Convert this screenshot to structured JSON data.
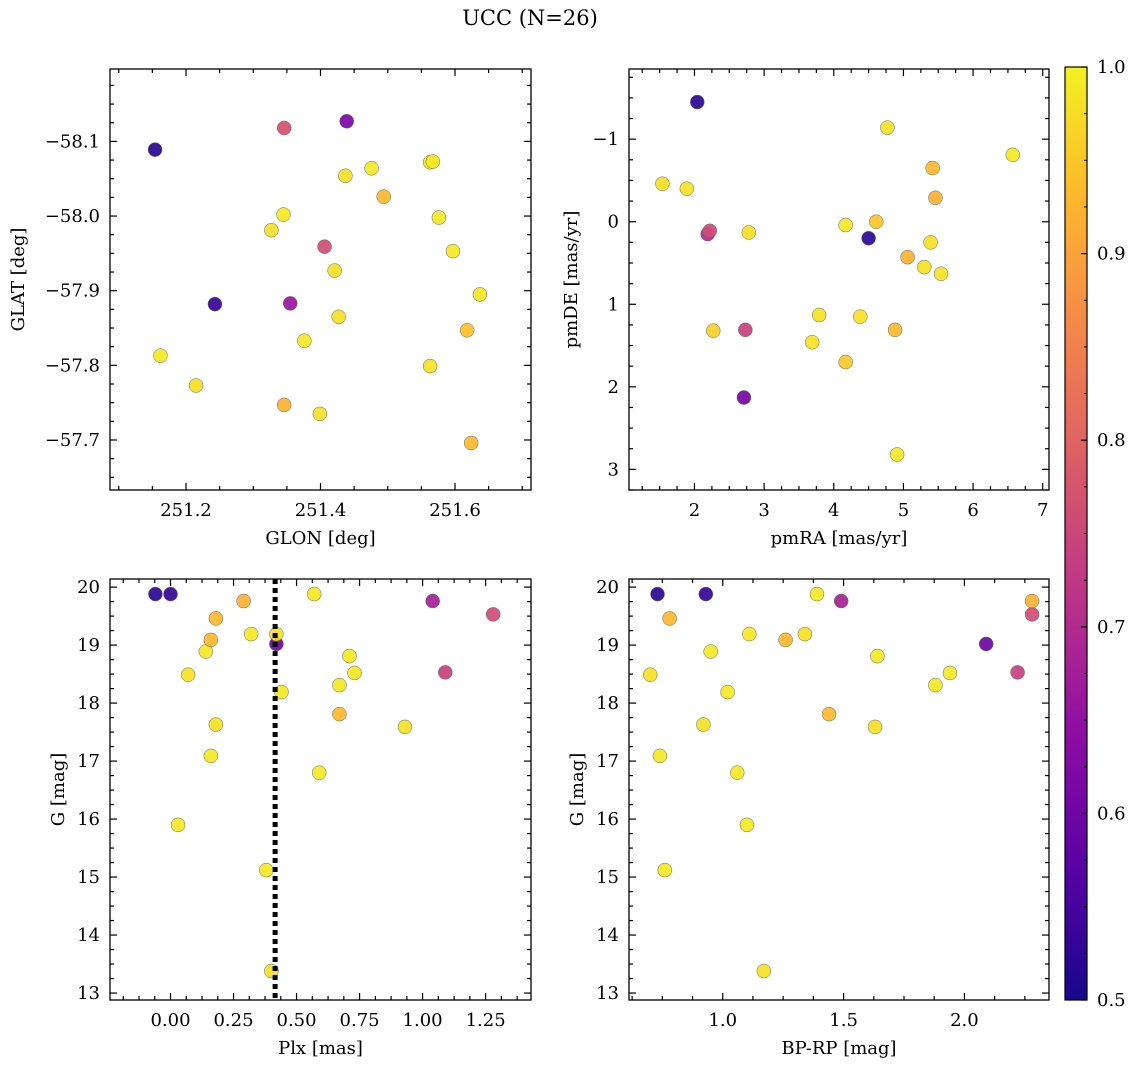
{
  "title": "UCC (N=26)",
  "colorbar": {
    "range": [
      0.5,
      1.0
    ],
    "ticks": [
      "0.5",
      "0.6",
      "0.7",
      "0.8",
      "0.9",
      "1.0"
    ],
    "colormap": "plasma"
  },
  "chart_data": [
    {
      "type": "scatter",
      "xlabel": "GLON [deg]",
      "ylabel": "GLAT [deg]",
      "xlim": [
        251.087,
        251.713
      ],
      "ylim": [
        -58.197,
        -57.633
      ],
      "xticks": [
        "251.2",
        "251.4",
        "251.6"
      ],
      "yticks": [
        "−57.7",
        "−57.8",
        "−57.9",
        "−58.0",
        "−58.1"
      ],
      "points": [
        {
          "x": 251.624,
          "y": -57.696,
          "c": 0.93
        },
        {
          "x": 251.346,
          "y": -57.747,
          "c": 0.92
        },
        {
          "x": 251.399,
          "y": -57.735,
          "c": 0.98
        },
        {
          "x": 251.215,
          "y": -57.773,
          "c": 0.98
        },
        {
          "x": 251.162,
          "y": -57.813,
          "c": 0.99
        },
        {
          "x": 251.563,
          "y": -57.799,
          "c": 0.98
        },
        {
          "x": 251.376,
          "y": -57.833,
          "c": 0.99
        },
        {
          "x": 251.618,
          "y": -57.847,
          "c": 0.94
        },
        {
          "x": 251.427,
          "y": -57.865,
          "c": 0.98
        },
        {
          "x": 251.243,
          "y": -57.882,
          "c": 0.53
        },
        {
          "x": 251.355,
          "y": -57.883,
          "c": 0.66
        },
        {
          "x": 251.637,
          "y": -57.895,
          "c": 0.99
        },
        {
          "x": 251.421,
          "y": -57.927,
          "c": 0.98
        },
        {
          "x": 251.597,
          "y": -57.953,
          "c": 0.99
        },
        {
          "x": 251.406,
          "y": -57.959,
          "c": 0.76
        },
        {
          "x": 251.327,
          "y": -57.981,
          "c": 0.98
        },
        {
          "x": 251.576,
          "y": -57.998,
          "c": 0.99
        },
        {
          "x": 251.345,
          "y": -58.002,
          "c": 0.99
        },
        {
          "x": 251.494,
          "y": -58.026,
          "c": 0.93
        },
        {
          "x": 251.437,
          "y": -58.054,
          "c": 0.98
        },
        {
          "x": 251.476,
          "y": -58.064,
          "c": 0.99
        },
        {
          "x": 251.563,
          "y": -58.072,
          "c": 0.99
        },
        {
          "x": 251.567,
          "y": -58.073,
          "c": 0.99
        },
        {
          "x": 251.154,
          "y": -58.089,
          "c": 0.52
        },
        {
          "x": 251.346,
          "y": -58.118,
          "c": 0.77
        },
        {
          "x": 251.439,
          "y": -58.127,
          "c": 0.62
        }
      ]
    },
    {
      "type": "scatter",
      "xlabel": "pmRA [mas/yr]",
      "ylabel": "pmDE [mas/yr]",
      "xlim": [
        1.06,
        7.09
      ],
      "ylim": [
        -1.85,
        3.25
      ],
      "xticks": [
        "2",
        "3",
        "4",
        "5",
        "6",
        "7"
      ],
      "yticks": [
        "−1",
        "0",
        "1",
        "2",
        "3"
      ],
      "points": [
        {
          "x": 4.91,
          "y": 2.82,
          "c": 0.99
        },
        {
          "x": 2.71,
          "y": 2.13,
          "c": 0.61
        },
        {
          "x": 4.17,
          "y": 1.7,
          "c": 0.95
        },
        {
          "x": 3.69,
          "y": 1.46,
          "c": 0.98
        },
        {
          "x": 2.27,
          "y": 1.32,
          "c": 0.96
        },
        {
          "x": 2.73,
          "y": 1.31,
          "c": 0.74
        },
        {
          "x": 4.88,
          "y": 1.31,
          "c": 0.93
        },
        {
          "x": 3.79,
          "y": 1.13,
          "c": 0.98
        },
        {
          "x": 4.38,
          "y": 1.15,
          "c": 0.98
        },
        {
          "x": 5.54,
          "y": 0.63,
          "c": 0.98
        },
        {
          "x": 5.3,
          "y": 0.55,
          "c": 0.98
        },
        {
          "x": 5.06,
          "y": 0.43,
          "c": 0.92
        },
        {
          "x": 5.39,
          "y": 0.25,
          "c": 0.98
        },
        {
          "x": 4.5,
          "y": 0.2,
          "c": 0.52
        },
        {
          "x": 2.19,
          "y": 0.15,
          "c": 0.7
        },
        {
          "x": 2.22,
          "y": 0.11,
          "c": 0.76
        },
        {
          "x": 2.78,
          "y": 0.13,
          "c": 0.98
        },
        {
          "x": 4.17,
          "y": 0.04,
          "c": 0.99
        },
        {
          "x": 4.61,
          "y": 0.0,
          "c": 0.95
        },
        {
          "x": 5.46,
          "y": -0.29,
          "c": 0.92
        },
        {
          "x": 1.89,
          "y": -0.4,
          "c": 0.98
        },
        {
          "x": 1.54,
          "y": -0.46,
          "c": 0.98
        },
        {
          "x": 5.42,
          "y": -0.65,
          "c": 0.93
        },
        {
          "x": 6.57,
          "y": -0.81,
          "c": 0.99
        },
        {
          "x": 4.77,
          "y": -1.14,
          "c": 0.98
        },
        {
          "x": 2.04,
          "y": -1.45,
          "c": 0.52
        }
      ]
    },
    {
      "type": "scatter",
      "xlabel": "Plx [mas]",
      "ylabel": "G [mag]",
      "xlim": [
        -0.24,
        1.43
      ],
      "ylim": [
        20.14,
        12.88
      ],
      "xticks": [
        "0.00",
        "0.25",
        "0.50",
        "0.75",
        "1.00",
        "1.25"
      ],
      "yticks": [
        "13",
        "14",
        "15",
        "16",
        "17",
        "18",
        "19",
        "20"
      ],
      "vline": {
        "x": 0.415,
        "style": "dotted"
      },
      "points": [
        {
          "x": 0.4,
          "y": 13.38,
          "c": 0.98
        },
        {
          "x": 0.38,
          "y": 15.12,
          "c": 0.99
        },
        {
          "x": 0.03,
          "y": 15.9,
          "c": 0.99
        },
        {
          "x": 0.59,
          "y": 16.8,
          "c": 0.99
        },
        {
          "x": 0.16,
          "y": 17.09,
          "c": 0.99
        },
        {
          "x": 0.93,
          "y": 17.59,
          "c": 0.98
        },
        {
          "x": 0.18,
          "y": 17.63,
          "c": 0.98
        },
        {
          "x": 0.67,
          "y": 17.81,
          "c": 0.93
        },
        {
          "x": 0.44,
          "y": 18.19,
          "c": 0.99
        },
        {
          "x": 0.67,
          "y": 18.31,
          "c": 0.99
        },
        {
          "x": 0.07,
          "y": 18.49,
          "c": 0.98
        },
        {
          "x": 0.73,
          "y": 18.52,
          "c": 0.99
        },
        {
          "x": 1.09,
          "y": 18.53,
          "c": 0.74
        },
        {
          "x": 0.71,
          "y": 18.81,
          "c": 0.99
        },
        {
          "x": 0.14,
          "y": 18.89,
          "c": 0.99
        },
        {
          "x": 0.42,
          "y": 19.02,
          "c": 0.6
        },
        {
          "x": 0.16,
          "y": 19.09,
          "c": 0.93
        },
        {
          "x": 0.32,
          "y": 19.19,
          "c": 0.99
        },
        {
          "x": 0.42,
          "y": 19.19,
          "c": 0.98
        },
        {
          "x": 0.18,
          "y": 19.46,
          "c": 0.93
        },
        {
          "x": 1.28,
          "y": 19.53,
          "c": 0.76
        },
        {
          "x": 1.04,
          "y": 19.76,
          "c": 0.68
        },
        {
          "x": 0.29,
          "y": 19.76,
          "c": 0.92
        },
        {
          "x": -0.06,
          "y": 19.88,
          "c": 0.52
        },
        {
          "x": 0.0,
          "y": 19.88,
          "c": 0.53
        },
        {
          "x": 0.57,
          "y": 19.88,
          "c": 0.99
        }
      ]
    },
    {
      "type": "scatter",
      "xlabel": "BP-RP [mag]",
      "ylabel": "G [mag]",
      "xlim": [
        0.612,
        2.35
      ],
      "ylim": [
        20.14,
        12.88
      ],
      "xticks": [
        "1.0",
        "1.5",
        "2.0"
      ],
      "yticks": [
        "13",
        "14",
        "15",
        "16",
        "17",
        "18",
        "19",
        "20"
      ],
      "points": [
        {
          "x": 1.17,
          "y": 13.38,
          "c": 0.98
        },
        {
          "x": 0.76,
          "y": 15.12,
          "c": 0.99
        },
        {
          "x": 1.1,
          "y": 15.9,
          "c": 0.99
        },
        {
          "x": 1.06,
          "y": 16.8,
          "c": 0.99
        },
        {
          "x": 0.74,
          "y": 17.09,
          "c": 0.99
        },
        {
          "x": 1.63,
          "y": 17.59,
          "c": 0.98
        },
        {
          "x": 0.92,
          "y": 17.63,
          "c": 0.98
        },
        {
          "x": 1.44,
          "y": 17.81,
          "c": 0.93
        },
        {
          "x": 1.02,
          "y": 18.19,
          "c": 0.99
        },
        {
          "x": 1.88,
          "y": 18.31,
          "c": 0.99
        },
        {
          "x": 0.7,
          "y": 18.49,
          "c": 0.98
        },
        {
          "x": 1.94,
          "y": 18.52,
          "c": 0.99
        },
        {
          "x": 2.22,
          "y": 18.53,
          "c": 0.74
        },
        {
          "x": 1.64,
          "y": 18.81,
          "c": 0.99
        },
        {
          "x": 0.95,
          "y": 18.89,
          "c": 0.99
        },
        {
          "x": 2.09,
          "y": 19.02,
          "c": 0.6
        },
        {
          "x": 1.26,
          "y": 19.09,
          "c": 0.93
        },
        {
          "x": 1.11,
          "y": 19.19,
          "c": 0.99
        },
        {
          "x": 1.34,
          "y": 19.19,
          "c": 0.98
        },
        {
          "x": 0.78,
          "y": 19.46,
          "c": 0.93
        },
        {
          "x": 2.28,
          "y": 19.53,
          "c": 0.76
        },
        {
          "x": 1.49,
          "y": 19.76,
          "c": 0.68
        },
        {
          "x": 2.28,
          "y": 19.76,
          "c": 0.92
        },
        {
          "x": 0.73,
          "y": 19.88,
          "c": 0.52
        },
        {
          "x": 0.93,
          "y": 19.88,
          "c": 0.53
        },
        {
          "x": 1.39,
          "y": 19.88,
          "c": 0.99
        }
      ]
    }
  ]
}
